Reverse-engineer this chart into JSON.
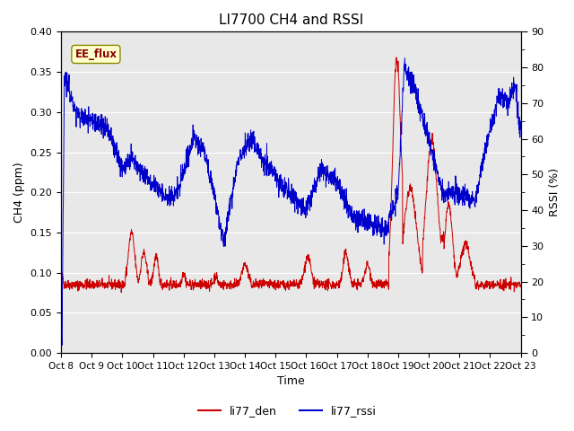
{
  "title": "LI7700 CH4 and RSSI",
  "xlabel": "Time",
  "ylabel_left": "CH4 (ppm)",
  "ylabel_right": "RSSI (%)",
  "annotation": "EE_flux",
  "ylim_left": [
    0.0,
    0.4
  ],
  "ylim_right": [
    0,
    90
  ],
  "yticks_left": [
    0.0,
    0.05,
    0.1,
    0.15,
    0.2,
    0.25,
    0.3,
    0.35,
    0.4
  ],
  "yticks_right": [
    0,
    10,
    20,
    30,
    40,
    50,
    60,
    70,
    80,
    90
  ],
  "xtick_labels": [
    "Oct 8",
    "Oct 9",
    "Oct 10",
    "Oct 11",
    "Oct 12",
    "Oct 13",
    "Oct 14",
    "Oct 15",
    "Oct 16",
    "Oct 17",
    "Oct 18",
    "Oct 19",
    "Oct 20",
    "Oct 21",
    "Oct 22",
    "Oct 23"
  ],
  "legend_labels": [
    "li77_den",
    "li77_rssi"
  ],
  "color_den": "#cc0000",
  "color_rssi": "#0000cc",
  "background_color": "#e8e8e8",
  "title_fontsize": 11,
  "label_fontsize": 9,
  "tick_fontsize": 8
}
